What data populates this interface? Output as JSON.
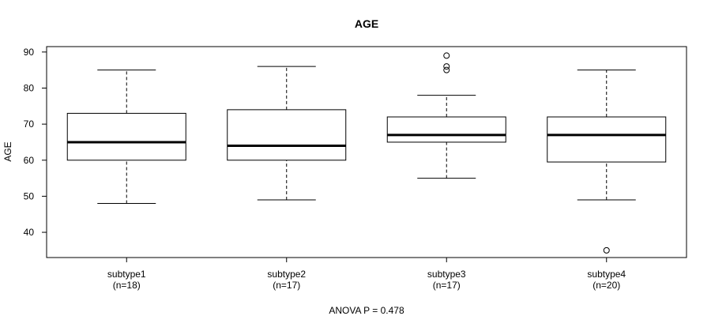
{
  "chart_data": {
    "type": "boxplot",
    "title": "AGE",
    "ylabel": "AGE",
    "xlabel": "",
    "footer": "ANOVA P = 0.478",
    "ylim": [
      33,
      91.5
    ],
    "yticks": [
      40,
      50,
      60,
      70,
      80,
      90
    ],
    "groups": [
      {
        "name": "subtype1",
        "n_label": "(n=18)",
        "whisker_low": 48,
        "q1": 60,
        "median": 65,
        "q3": 73,
        "whisker_high": 85,
        "outliers": []
      },
      {
        "name": "subtype2",
        "n_label": "(n=17)",
        "whisker_low": 49,
        "q1": 60,
        "median": 64,
        "q3": 74,
        "whisker_high": 86,
        "outliers": []
      },
      {
        "name": "subtype3",
        "n_label": "(n=17)",
        "whisker_low": 55,
        "q1": 65,
        "median": 67,
        "q3": 72,
        "whisker_high": 78,
        "outliers": [
          85,
          86,
          89
        ]
      },
      {
        "name": "subtype4",
        "n_label": "(n=20)",
        "whisker_low": 49,
        "q1": 59.5,
        "median": 67,
        "q3": 72,
        "whisker_high": 85,
        "outliers": [
          35
        ]
      }
    ]
  }
}
